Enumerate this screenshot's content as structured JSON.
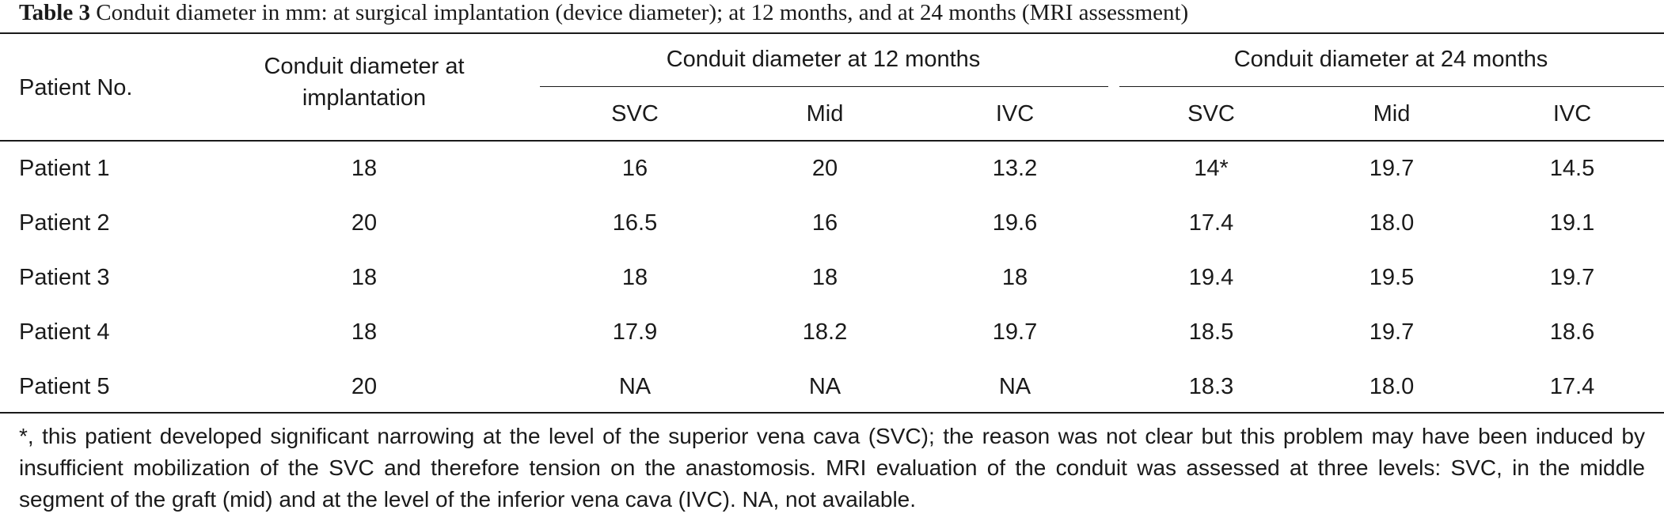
{
  "caption": {
    "label": "Table 3",
    "text": " Conduit diameter in mm: at surgical implantation (device diameter); at 12 months, and at 24 months (MRI assessment)"
  },
  "table": {
    "header": {
      "patient": "Patient No.",
      "implantation": "Conduit diameter at implantation",
      "group12": "Conduit diameter at 12 months",
      "group24": "Conduit diameter at 24 months",
      "sub12": [
        "SVC",
        "Mid",
        "IVC"
      ],
      "sub24": [
        "SVC",
        "Mid",
        "IVC"
      ]
    },
    "rows": [
      {
        "patient": "Patient 1",
        "implant": "18",
        "m12": [
          "16",
          "20",
          "13.2"
        ],
        "m24": [
          "14*",
          "19.7",
          "14.5"
        ]
      },
      {
        "patient": "Patient 2",
        "implant": "20",
        "m12": [
          "16.5",
          "16",
          "19.6"
        ],
        "m24": [
          "17.4",
          "18.0",
          "19.1"
        ]
      },
      {
        "patient": "Patient 3",
        "implant": "18",
        "m12": [
          "18",
          "18",
          "18"
        ],
        "m24": [
          "19.4",
          "19.5",
          "19.7"
        ]
      },
      {
        "patient": "Patient 4",
        "implant": "18",
        "m12": [
          "17.9",
          "18.2",
          "19.7"
        ],
        "m24": [
          "18.5",
          "19.7",
          "18.6"
        ]
      },
      {
        "patient": "Patient 5",
        "implant": "20",
        "m12": [
          "NA",
          "NA",
          "NA"
        ],
        "m24": [
          "18.3",
          "18.0",
          "17.4"
        ]
      }
    ]
  },
  "footnote": "*, this patient developed significant narrowing at the level of the superior vena cava (SVC); the reason was not clear but this problem may have been induced by insufficient mobilization of the SVC and therefore tension on the anastomosis. MRI evaluation of the conduit was assessed at three levels: SVC, in the middle segment of the graft (mid) and at the level of the inferior vena cava (IVC). NA, not available."
}
